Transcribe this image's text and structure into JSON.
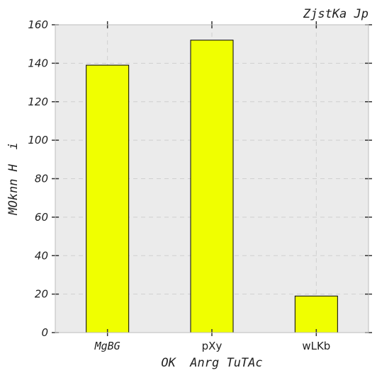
{
  "chart_data": {
    "type": "bar",
    "title": "ZjstKa Jp",
    "xlabel": "OK  Anrg TuTAc",
    "ylabel": "MOknn H  i",
    "categories": [
      "MgBG",
      "pXy",
      "wLKb"
    ],
    "values": [
      139,
      152,
      19
    ],
    "ylim": [
      0,
      160
    ],
    "yticks": [
      0,
      20,
      40,
      60,
      80,
      100,
      120,
      140,
      160
    ],
    "grid": true,
    "legend": "none",
    "bar_color": "#f0ff00",
    "bar_edge_color": "#000000",
    "background_color": "#ebebeb"
  }
}
